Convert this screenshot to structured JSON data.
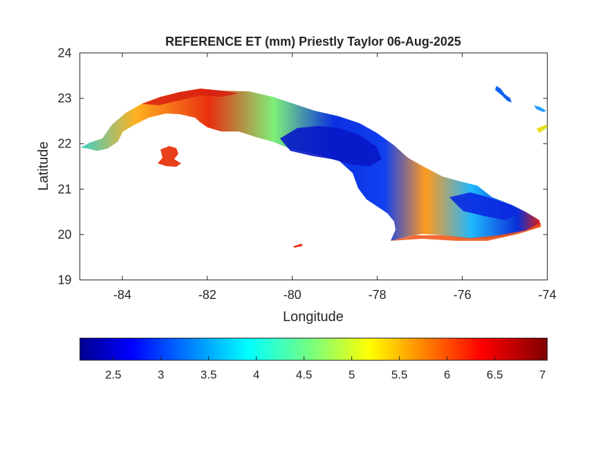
{
  "figure": {
    "title": "REFERENCE ET (mm) Priestly Taylor 06-Aug-2025",
    "xlabel": "Longitude",
    "ylabel": "Latitude"
  },
  "axes": {
    "x_ticks": [
      {
        "value": -84,
        "label": "-84"
      },
      {
        "value": -82,
        "label": "-82"
      },
      {
        "value": -80,
        "label": "-80"
      },
      {
        "value": -78,
        "label": "-78"
      },
      {
        "value": -76,
        "label": "-76"
      },
      {
        "value": -74,
        "label": "-74"
      }
    ],
    "y_ticks": [
      {
        "value": 19,
        "label": "19"
      },
      {
        "value": 20,
        "label": "20"
      },
      {
        "value": 21,
        "label": "21"
      },
      {
        "value": 22,
        "label": "22"
      },
      {
        "value": 23,
        "label": "23"
      },
      {
        "value": 24,
        "label": "24"
      }
    ],
    "xlim": [
      -85,
      -74
    ],
    "ylim": [
      19,
      24
    ]
  },
  "colorbar": {
    "colormap": "jet",
    "range": [
      2.15,
      7.05
    ],
    "ticks": [
      {
        "value": 2.5,
        "label": "2.5"
      },
      {
        "value": 3,
        "label": "3"
      },
      {
        "value": 3.5,
        "label": "3.5"
      },
      {
        "value": 4,
        "label": "4"
      },
      {
        "value": 4.5,
        "label": "4.5"
      },
      {
        "value": 5,
        "label": "5"
      },
      {
        "value": 5.5,
        "label": "5.5"
      },
      {
        "value": 6,
        "label": "6"
      },
      {
        "value": 6.5,
        "label": "6.5"
      },
      {
        "value": 7,
        "label": "7"
      }
    ]
  }
}
